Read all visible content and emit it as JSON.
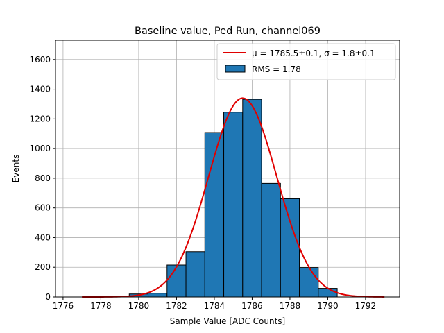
{
  "chart_data": {
    "type": "bar",
    "title": "Baseline value, Ped Run, channel069",
    "xlabel": "Sample Value [ADC Counts]",
    "ylabel": "Events",
    "xlim": [
      1775.6,
      1793.8
    ],
    "ylim": [
      0,
      1730
    ],
    "grid": true,
    "legend_position": "top-right",
    "x_ticks": [
      1776,
      1778,
      1780,
      1782,
      1784,
      1786,
      1788,
      1790,
      1792
    ],
    "y_ticks": [
      0,
      200,
      400,
      600,
      800,
      1000,
      1200,
      1400,
      1600
    ],
    "histogram": {
      "name": "RMS = 1.78",
      "color": "#1f77b4",
      "edge_color": "#000000",
      "bin_edges": [
        1776.5,
        1777.5,
        1778.5,
        1779.5,
        1780.5,
        1781.5,
        1782.5,
        1783.5,
        1784.5,
        1785.5,
        1786.5,
        1787.5,
        1788.5,
        1789.5,
        1790.5,
        1791.5,
        1792.5
      ],
      "values": [
        0,
        0,
        0,
        20,
        25,
        215,
        305,
        1108,
        1245,
        1332,
        765,
        662,
        198,
        58,
        0,
        0
      ]
    },
    "fit": {
      "name": "μ = 1785.5±0.1, σ = 1.8±0.1",
      "color": "#e00000",
      "mu": 1785.5,
      "sigma": 1.8,
      "amplitude": 1340,
      "x_range": [
        1777,
        1793
      ]
    }
  }
}
